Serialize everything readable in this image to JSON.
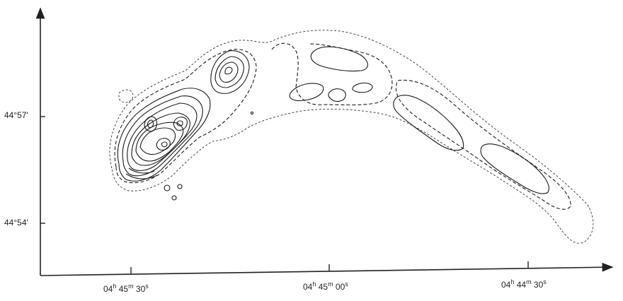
{
  "y_axis": {
    "ticks": [
      {
        "deg": "44",
        "min": "57"
      },
      {
        "deg": "44",
        "min": "54"
      }
    ]
  },
  "x_axis": {
    "ticks": [
      {
        "h": "04",
        "m": "45",
        "s": "30"
      },
      {
        "h": "04",
        "m": "45",
        "s": "00"
      },
      {
        "h": "04",
        "m": "44",
        "s": "30"
      }
    ]
  },
  "units": {
    "deg_symbol": "°",
    "arcmin_symbol": "'",
    "hour": "h",
    "minute": "m",
    "second": "s"
  }
}
